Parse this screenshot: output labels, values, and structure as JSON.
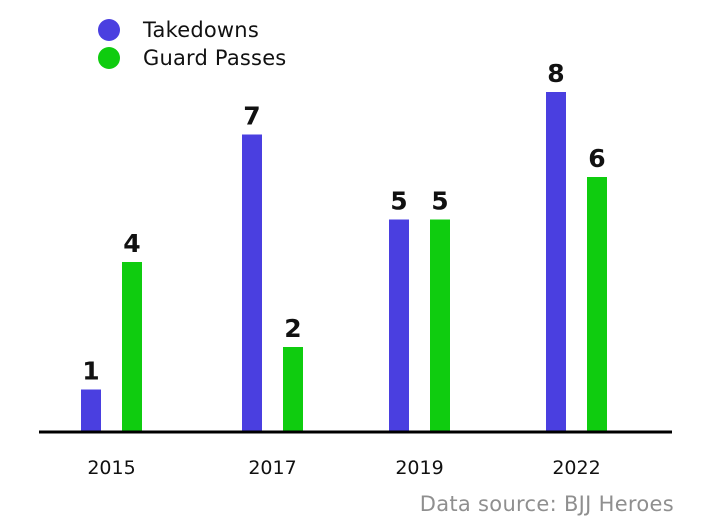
{
  "chart_data": {
    "type": "bar",
    "categories": [
      "2015",
      "2017",
      "2019",
      "2022"
    ],
    "series": [
      {
        "name": "Takedowns",
        "values": [
          1,
          7,
          5,
          8
        ],
        "color": "#4a3fe0"
      },
      {
        "name": "Guard Passes",
        "values": [
          4,
          2,
          5,
          6
        ],
        "color": "#0fcc0f"
      }
    ],
    "ylim": [
      0,
      9
    ],
    "legend_position": "top-left",
    "grid": false,
    "data_labels": true
  },
  "source": "Data source: BJJ Heroes"
}
